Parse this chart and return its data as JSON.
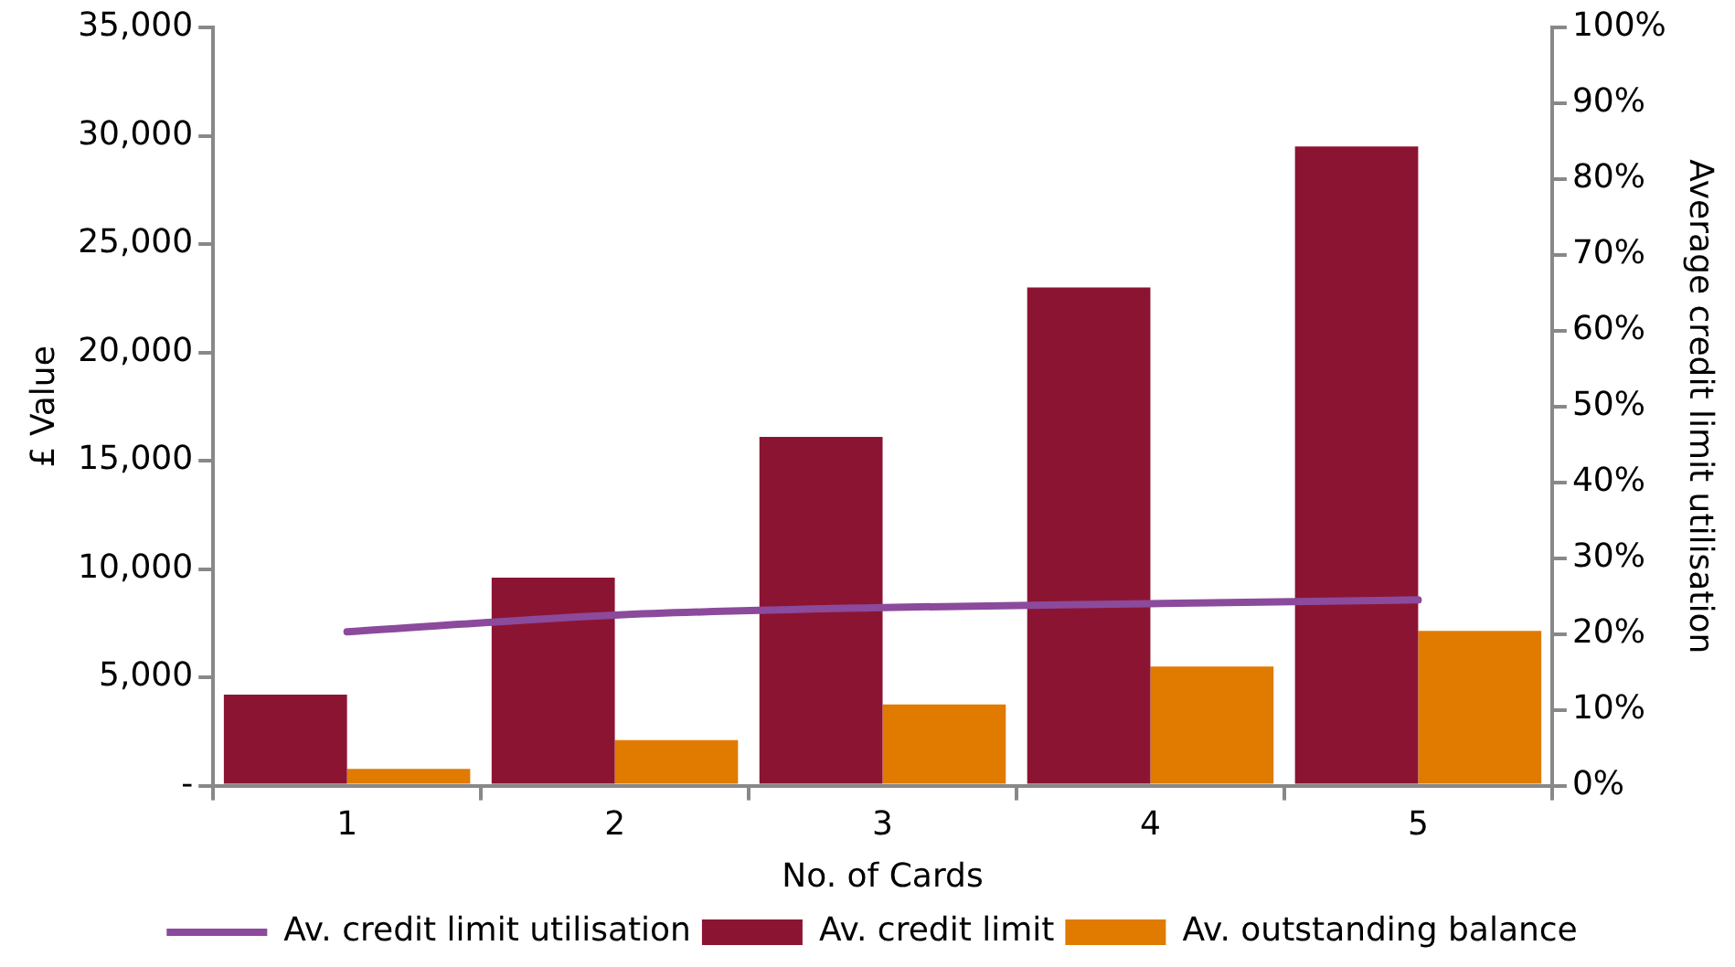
{
  "chart_data": {
    "type": "bar",
    "xlabel": "No. of Cards",
    "ylabel": "£ Value",
    "y2label": "Average credit limit utilisation",
    "categories": [
      "1",
      "2",
      "3",
      "4",
      "5"
    ],
    "series": [
      {
        "name": "Av. credit limit",
        "color": "#8c1433",
        "values": [
          4200,
          9600,
          16100,
          23000,
          29500
        ]
      },
      {
        "name": "Av. outstanding balance",
        "color": "#e07b00",
        "values": [
          770,
          2100,
          3750,
          5500,
          7150
        ]
      },
      {
        "name": "Av. credit limit utilisation",
        "type": "line",
        "axis": "y2",
        "color": "#8b4a9c",
        "values": [
          20.3,
          22.5,
          23.5,
          24,
          24.5
        ]
      }
    ],
    "ylim": [
      0,
      35000
    ],
    "yticks": [
      {
        "value": 0,
        "label": "-"
      },
      {
        "value": 5000,
        "label": "5,000"
      },
      {
        "value": 10000,
        "label": "10,000"
      },
      {
        "value": 15000,
        "label": "15,000"
      },
      {
        "value": 20000,
        "label": "20,000"
      },
      {
        "value": 25000,
        "label": "25,000"
      },
      {
        "value": 30000,
        "label": "30,000"
      },
      {
        "value": 35000,
        "label": "35,000"
      }
    ],
    "y2lim": [
      0,
      100
    ],
    "y2ticks": [
      {
        "value": 0,
        "label": "0%"
      },
      {
        "value": 10,
        "label": "10%"
      },
      {
        "value": 20,
        "label": "20%"
      },
      {
        "value": 30,
        "label": "30%"
      },
      {
        "value": 40,
        "label": "40%"
      },
      {
        "value": 50,
        "label": "50%"
      },
      {
        "value": 60,
        "label": "60%"
      },
      {
        "value": 70,
        "label": "70%"
      },
      {
        "value": 80,
        "label": "80%"
      },
      {
        "value": 90,
        "label": "90%"
      },
      {
        "value": 100,
        "label": "100%"
      }
    ],
    "grid": false,
    "legend": "bottom",
    "marker": "none"
  }
}
